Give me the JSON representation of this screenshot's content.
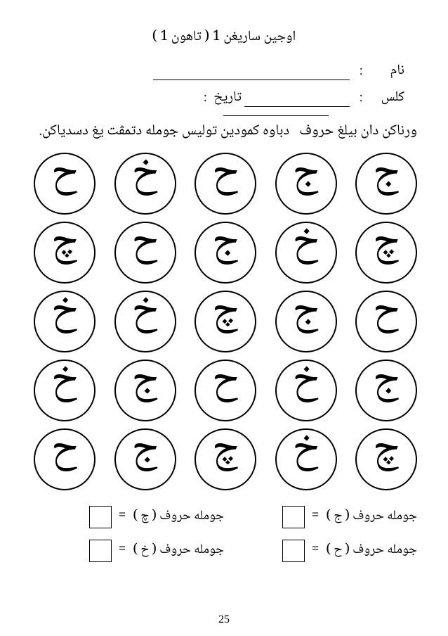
{
  "title": "اوجين ساريغن 1 ( تاهون 1 )",
  "form": {
    "name_label": "نام",
    "class_label": "كلس",
    "date_label": "تاريخ",
    "colon": ":"
  },
  "instruction": "ورناكن دان بيلغ حروف   دباوه كمودين توليس جومله دتمڤت يغ دسدياكن.",
  "letters": {
    "rows": [
      [
        "ج",
        "ج",
        "ح",
        "خ",
        "ح"
      ],
      [
        "چ",
        "خ",
        "ج",
        "ح",
        "چ"
      ],
      [
        "ح",
        "ج",
        "چ",
        "خ",
        "خ"
      ],
      [
        "ج",
        "خ",
        "ح",
        "ج",
        "خ"
      ],
      [
        "چ",
        "خ",
        "چ",
        "ج",
        "ح"
      ]
    ],
    "font_size": 60,
    "circle_border_color": "#000000",
    "circle_diameter": 88
  },
  "totals": {
    "items": [
      {
        "right": "جومله حروف ( ج )",
        "left": "جومله حروف ( چ )"
      },
      {
        "right": "جومله حروف ( ح )",
        "left": "جومله حروف ( خ )"
      }
    ],
    "equals": "="
  },
  "page_number": "25",
  "colors": {
    "background": "#ffffff",
    "text": "#000000",
    "border": "#000000"
  }
}
